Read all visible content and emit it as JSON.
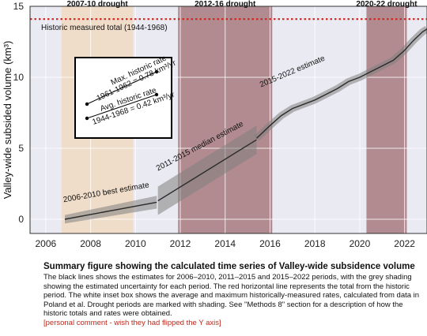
{
  "chart_data": {
    "type": "line",
    "ylabel": "Valley-wide subsided volume (km³)",
    "xlim": [
      2005.3,
      2023.0
    ],
    "ylim": [
      -1.0,
      15.0
    ],
    "xticks": [
      2006,
      2008,
      2010,
      2012,
      2014,
      2016,
      2018,
      2020,
      2022
    ],
    "yticks": [
      0,
      5,
      10,
      15
    ],
    "grid": true,
    "drought_periods": [
      {
        "label": "2007-10 drought",
        "start": 2006.7,
        "end": 2009.9,
        "color": "#f1dcc4"
      },
      {
        "label": "2012-16 drought",
        "start": 2011.9,
        "end": 2016.1,
        "color": "#a87a7f"
      },
      {
        "label": "2020-22 drought",
        "start": 2020.3,
        "end": 2022.1,
        "color": "#a87a7f"
      }
    ],
    "historic_total": {
      "value": 14.1,
      "label": "Historic measured total (1944-1968)",
      "color": "#d0241b"
    },
    "series": [
      {
        "name": "2006-2010 best estimate",
        "label_text": "2006-2010 best estimate",
        "x": [
          2006.85,
          2010.95
        ],
        "y": [
          0.0,
          1.2
        ],
        "upper": [
          0.3,
          1.65
        ],
        "lower": [
          -0.3,
          0.75
        ]
      },
      {
        "name": "2011-2015 median estimate",
        "label_text": "2011-2015 median estimate",
        "x": [
          2011.0,
          2015.4
        ],
        "y": [
          1.3,
          5.6
        ],
        "upper": [
          2.3,
          6.6
        ],
        "lower": [
          0.3,
          4.6
        ]
      },
      {
        "name": "2015-2022 estimate",
        "label_text": "2015-2022 estimate",
        "x": [
          2015.4,
          2015.6,
          2016.0,
          2016.5,
          2017.0,
          2017.5,
          2018.0,
          2018.5,
          2019.0,
          2019.5,
          2020.0,
          2020.5,
          2021.0,
          2021.5,
          2022.0,
          2022.4,
          2022.8,
          2023.0
        ],
        "y": [
          5.7,
          6.0,
          6.6,
          7.3,
          7.8,
          8.1,
          8.4,
          8.8,
          9.2,
          9.7,
          10.0,
          10.4,
          10.8,
          11.2,
          11.9,
          12.6,
          13.2,
          13.4
        ]
      }
    ],
    "inset": {
      "max_label": "Max. historic rate",
      "max_value": "1961-1962 = 0.78 km³/yr",
      "avg_label": "Avg. historic rate",
      "avg_value": "1944-1968 = 0.42 km³/yr"
    }
  },
  "caption": {
    "title": "Summary figure showing the calculated time series of Valley-wide subsidence volume",
    "body": "The black lines shows the estimates for 2006–2010, 2011–2015 and 2015–2022 periods, with the grey shading showing the estimated uncertainty for each period. The red horizontal line represents the total from the historic period. The white inset box shows the average and maximum historically-measured rates, calculated from data in Poland et al. Drought periods are marked with shading. See \"Methods 8\" section for a description of how the historic totals and rates were obtained.",
    "comment": "[personal comment - wish they had flipped the Y axis]"
  }
}
